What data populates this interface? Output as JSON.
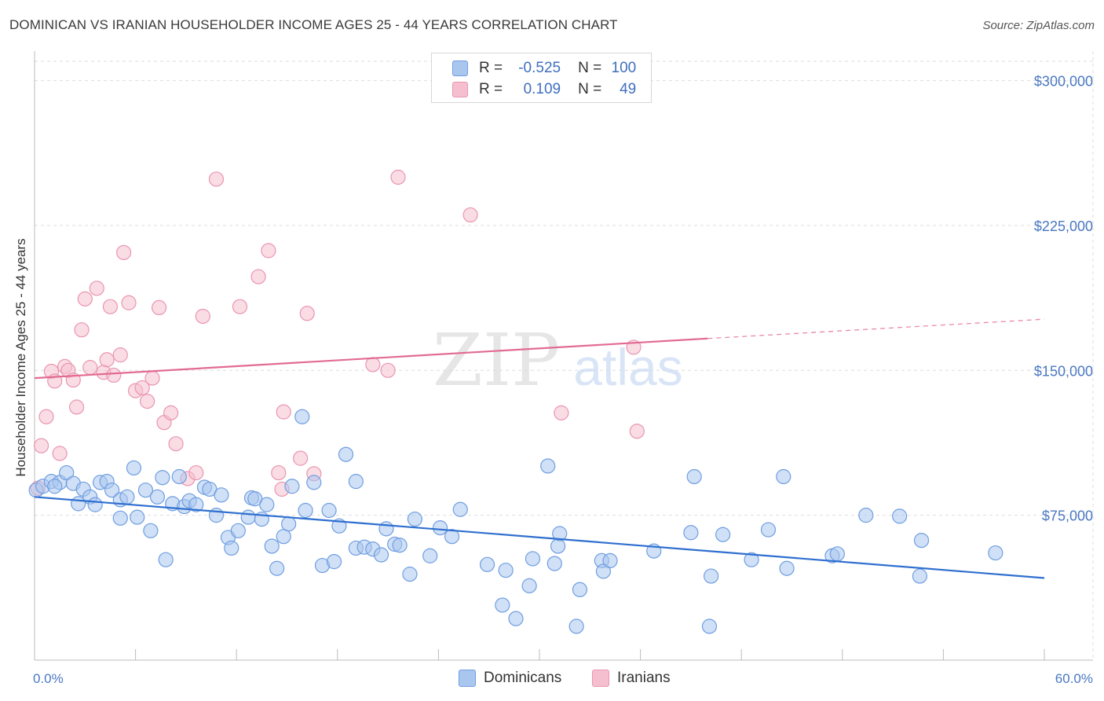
{
  "title": "DOMINICAN VS IRANIAN HOUSEHOLDER INCOME AGES 25 - 44 YEARS CORRELATION CHART",
  "source": "Source: ZipAtlas.com",
  "watermark": {
    "zip": "ZIP",
    "atlas": "atlas"
  },
  "legend": {
    "r_label": "R =",
    "n_label": "N =",
    "rows": [
      {
        "r": "-0.525",
        "n": "100"
      },
      {
        "r": "0.109",
        "n": "49"
      }
    ]
  },
  "colors": {
    "blue_fill": "#a9c6ef",
    "blue_stroke": "#6f9ee0",
    "blue_line": "#2f6fcf",
    "pink_fill": "#f5bfd0",
    "pink_stroke": "#e995b1",
    "pink_line": "#e26b93",
    "tick_text": "#4a78c2",
    "grid": "#dddddd"
  },
  "chart_data": {
    "type": "scatter",
    "title": "DOMINICAN VS IRANIAN HOUSEHOLDER INCOME AGES 25 - 44 YEARS CORRELATION CHART",
    "xlabel": "",
    "ylabel": "Householder Income Ages 25 - 44 years",
    "xlim": [
      0,
      60
    ],
    "ylim": [
      0,
      310000
    ],
    "x_tick_labels": [
      "0.0%",
      "60.0%"
    ],
    "y_ticks": [
      75000,
      150000,
      225000,
      300000
    ],
    "y_tick_labels": [
      "$75,000",
      "$150,000",
      "$225,000",
      "$300,000"
    ],
    "grid": true,
    "legend_position": "top-center",
    "series": [
      {
        "name": "Dominicans",
        "r": -0.525,
        "n": 100,
        "trend": {
          "x": [
            0,
            60
          ],
          "y": [
            84500,
            42500
          ]
        },
        "points": [
          [
            0.1,
            88000
          ],
          [
            0.5,
            90000
          ],
          [
            1.0,
            92500
          ],
          [
            1.5,
            92000
          ],
          [
            1.9,
            97000
          ],
          [
            2.3,
            91500
          ],
          [
            2.6,
            81000
          ],
          [
            2.9,
            88500
          ],
          [
            3.3,
            84500
          ],
          [
            3.6,
            80500
          ],
          [
            3.9,
            92000
          ],
          [
            4.3,
            92500
          ],
          [
            4.6,
            88000
          ],
          [
            5.1,
            83000
          ],
          [
            5.1,
            73500
          ],
          [
            5.5,
            84500
          ],
          [
            5.9,
            99500
          ],
          [
            6.1,
            74000
          ],
          [
            6.6,
            88000
          ],
          [
            6.9,
            67000
          ],
          [
            7.3,
            84500
          ],
          [
            7.6,
            94500
          ],
          [
            7.8,
            52000
          ],
          [
            8.2,
            81000
          ],
          [
            8.6,
            95000
          ],
          [
            8.9,
            79500
          ],
          [
            9.2,
            82500
          ],
          [
            9.6,
            80500
          ],
          [
            10.1,
            89500
          ],
          [
            10.4,
            88500
          ],
          [
            10.8,
            75000
          ],
          [
            11.1,
            85500
          ],
          [
            11.5,
            63500
          ],
          [
            11.7,
            58000
          ],
          [
            12.1,
            67000
          ],
          [
            12.7,
            74000
          ],
          [
            12.9,
            84000
          ],
          [
            13.1,
            83500
          ],
          [
            13.5,
            73000
          ],
          [
            13.8,
            80500
          ],
          [
            14.1,
            59000
          ],
          [
            14.4,
            47500
          ],
          [
            14.8,
            64000
          ],
          [
            15.1,
            70500
          ],
          [
            15.3,
            90000
          ],
          [
            15.9,
            126000
          ],
          [
            16.1,
            77500
          ],
          [
            16.6,
            92000
          ],
          [
            17.1,
            49000
          ],
          [
            17.5,
            77500
          ],
          [
            17.8,
            51000
          ],
          [
            18.1,
            69500
          ],
          [
            18.5,
            106500
          ],
          [
            19.1,
            92500
          ],
          [
            19.1,
            58000
          ],
          [
            19.6,
            58500
          ],
          [
            20.1,
            57500
          ],
          [
            20.6,
            54500
          ],
          [
            20.9,
            68000
          ],
          [
            21.4,
            60000
          ],
          [
            21.7,
            59500
          ],
          [
            22.3,
            44500
          ],
          [
            22.6,
            73000
          ],
          [
            23.5,
            54000
          ],
          [
            24.1,
            68500
          ],
          [
            24.8,
            64000
          ],
          [
            25.3,
            78000
          ],
          [
            26.9,
            49500
          ],
          [
            27.8,
            28500
          ],
          [
            28.0,
            46500
          ],
          [
            28.6,
            21500
          ],
          [
            29.4,
            38500
          ],
          [
            29.6,
            52500
          ],
          [
            30.5,
            100500
          ],
          [
            30.9,
            50000
          ],
          [
            31.1,
            59000
          ],
          [
            31.2,
            65500
          ],
          [
            32.2,
            17500
          ],
          [
            32.4,
            36500
          ],
          [
            33.7,
            51500
          ],
          [
            33.8,
            46000
          ],
          [
            34.2,
            51500
          ],
          [
            36.8,
            56500
          ],
          [
            39.0,
            66000
          ],
          [
            39.2,
            95000
          ],
          [
            40.2,
            43500
          ],
          [
            40.9,
            65000
          ],
          [
            42.6,
            52000
          ],
          [
            43.6,
            67500
          ],
          [
            44.5,
            95000
          ],
          [
            44.7,
            47500
          ],
          [
            47.4,
            54000
          ],
          [
            47.7,
            55000
          ],
          [
            49.4,
            75000
          ],
          [
            51.4,
            74500
          ],
          [
            52.6,
            43500
          ],
          [
            52.7,
            62000
          ],
          [
            57.1,
            55500
          ],
          [
            40.1,
            17500
          ],
          [
            1.2,
            90000
          ]
        ]
      },
      {
        "name": "Iranians",
        "r": 0.109,
        "n": 49,
        "trend": {
          "x": [
            0,
            40
          ],
          "y": [
            146000,
            166500
          ]
        },
        "trend_dashed": {
          "x": [
            40,
            60
          ],
          "y": [
            166500,
            176500
          ]
        },
        "points": [
          [
            0.2,
            89000
          ],
          [
            0.4,
            111000
          ],
          [
            0.7,
            126000
          ],
          [
            1.0,
            149500
          ],
          [
            1.2,
            144500
          ],
          [
            1.5,
            107000
          ],
          [
            1.8,
            152000
          ],
          [
            2.0,
            150000
          ],
          [
            2.3,
            145000
          ],
          [
            2.5,
            131000
          ],
          [
            2.8,
            171000
          ],
          [
            3.0,
            187000
          ],
          [
            3.3,
            151500
          ],
          [
            3.7,
            192500
          ],
          [
            4.1,
            149000
          ],
          [
            4.3,
            155500
          ],
          [
            4.5,
            183000
          ],
          [
            4.7,
            147500
          ],
          [
            5.1,
            158000
          ],
          [
            5.3,
            211000
          ],
          [
            5.6,
            185000
          ],
          [
            6.0,
            139500
          ],
          [
            6.4,
            141000
          ],
          [
            6.7,
            134000
          ],
          [
            7.0,
            146000
          ],
          [
            7.4,
            182500
          ],
          [
            7.7,
            123000
          ],
          [
            8.1,
            128000
          ],
          [
            8.4,
            112000
          ],
          [
            9.1,
            94000
          ],
          [
            9.6,
            97000
          ],
          [
            10.0,
            178000
          ],
          [
            10.8,
            249000
          ],
          [
            12.2,
            183000
          ],
          [
            13.3,
            198500
          ],
          [
            13.9,
            212000
          ],
          [
            14.5,
            97000
          ],
          [
            14.7,
            88500
          ],
          [
            14.8,
            128500
          ],
          [
            15.8,
            104500
          ],
          [
            16.2,
            179500
          ],
          [
            16.6,
            96500
          ],
          [
            20.1,
            153000
          ],
          [
            21.6,
            250000
          ],
          [
            25.9,
            230500
          ],
          [
            31.3,
            128000
          ],
          [
            35.6,
            162000
          ],
          [
            35.8,
            118500
          ],
          [
            21.0,
            150000
          ]
        ]
      }
    ]
  }
}
